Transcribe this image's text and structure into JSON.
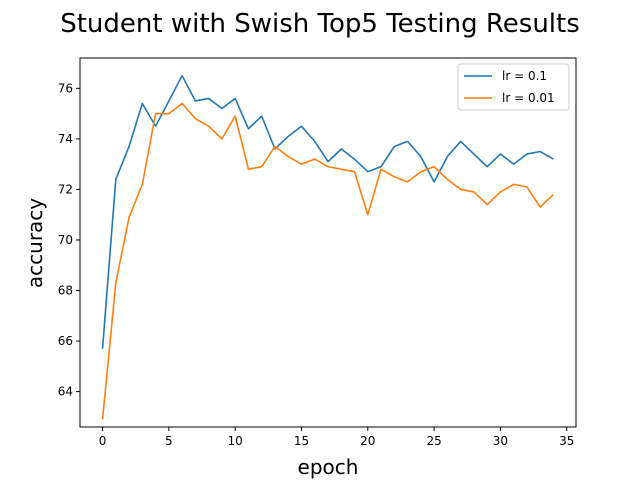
{
  "chart_data": {
    "type": "line",
    "title": "Student with Swish Top5 Testing Results",
    "xlabel": "epoch",
    "ylabel": "accuracy",
    "xlim": [
      -1.7,
      35.7
    ],
    "ylim": [
      62.6,
      77.2
    ],
    "xticks": [
      0,
      5,
      10,
      15,
      20,
      25,
      30,
      35
    ],
    "yticks": [
      64,
      66,
      68,
      70,
      72,
      74,
      76
    ],
    "grid": false,
    "legend_position": "top-right",
    "x": [
      0,
      1,
      2,
      3,
      4,
      5,
      6,
      7,
      8,
      9,
      10,
      11,
      12,
      13,
      14,
      15,
      16,
      17,
      18,
      19,
      20,
      21,
      22,
      23,
      24,
      25,
      26,
      27,
      28,
      29,
      30,
      31,
      32,
      33,
      34
    ],
    "series": [
      {
        "name": "lr = 0.1",
        "color": "#1f77b4",
        "values": [
          65.7,
          72.4,
          73.7,
          75.4,
          74.5,
          75.5,
          76.5,
          75.5,
          75.6,
          75.2,
          75.6,
          74.4,
          74.9,
          73.6,
          74.1,
          74.5,
          73.9,
          73.1,
          73.6,
          73.2,
          72.7,
          72.9,
          73.7,
          73.9,
          73.3,
          72.3,
          73.3,
          73.9,
          73.4,
          72.9,
          73.4,
          73.0,
          73.4,
          73.5,
          73.2
        ]
      },
      {
        "name": "lr = 0.01",
        "color": "#ff7f0e",
        "values": [
          62.9,
          68.3,
          70.9,
          72.2,
          75.0,
          75.0,
          75.4,
          74.8,
          74.5,
          74.0,
          74.9,
          72.8,
          72.9,
          73.7,
          73.3,
          73.0,
          73.2,
          72.9,
          72.8,
          72.7,
          71.0,
          72.8,
          72.5,
          72.3,
          72.7,
          72.9,
          72.4,
          72.0,
          71.9,
          71.4,
          71.9,
          72.2,
          72.1,
          71.3,
          71.8
        ]
      }
    ]
  }
}
